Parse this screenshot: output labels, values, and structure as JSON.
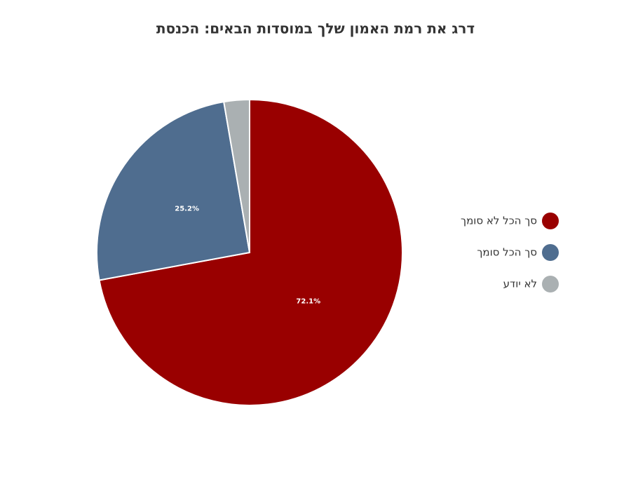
{
  "chart_data": {
    "type": "pie",
    "title": "דרג את רמת האמון שלך במוסדות הבאים: הכנסת",
    "categories": [
      "סך הכל לא סומך",
      "סך הכל סומך",
      "לא יודע"
    ],
    "values": [
      72.1,
      25.2,
      2.7
    ],
    "value_labels": [
      "72.1%",
      "25.2%",
      null
    ],
    "colors": [
      "#990000",
      "#4f6d8f",
      "#aab0b2"
    ],
    "legend": "right"
  }
}
